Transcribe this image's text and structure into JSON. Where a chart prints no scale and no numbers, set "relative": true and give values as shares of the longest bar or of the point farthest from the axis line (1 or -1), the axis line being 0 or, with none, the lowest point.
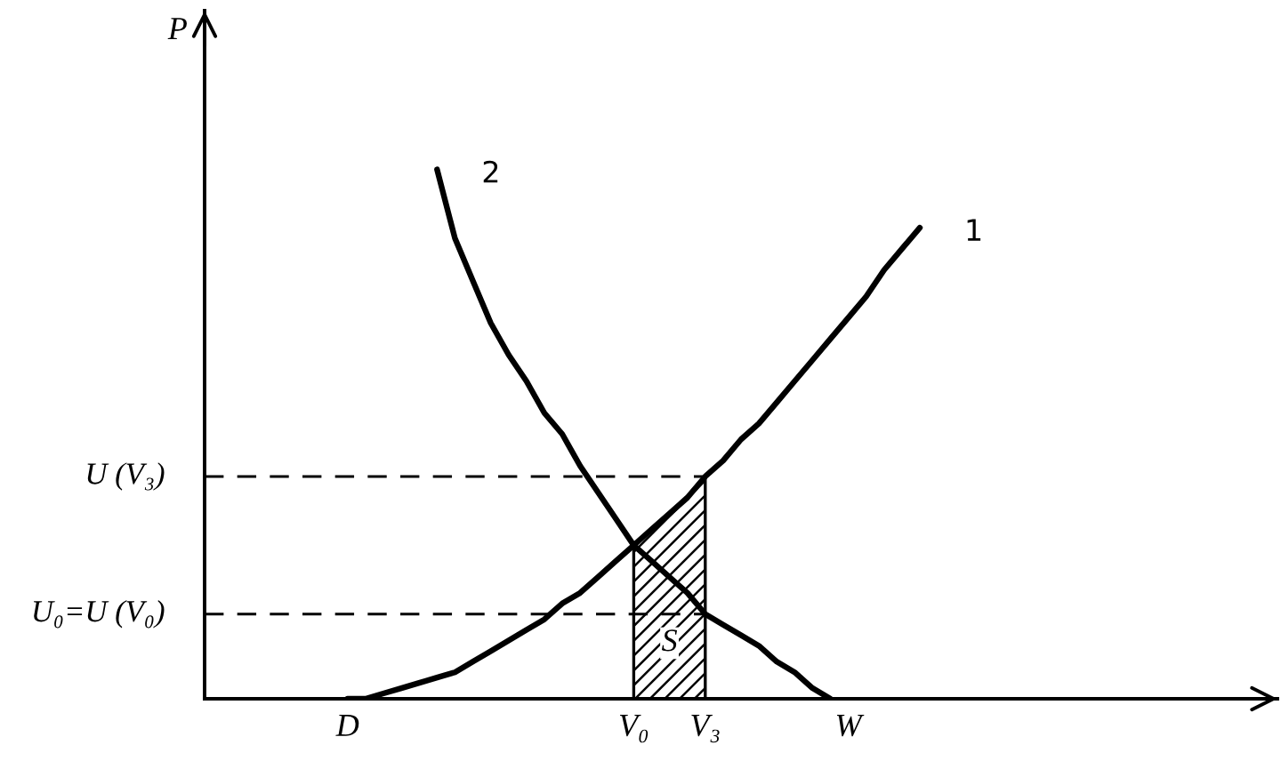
{
  "chart_data": {
    "type": "line",
    "relative": true,
    "ylabel": "P",
    "tick_labels": "x",
    "categories": [
      null,
      null,
      null,
      null,
      null,
      null,
      null,
      null,
      "D",
      null,
      null,
      null,
      null,
      null,
      null,
      null,
      null,
      null,
      null,
      null,
      null,
      null,
      null,
      null,
      "V₀",
      null,
      null,
      null,
      "V₃",
      null,
      null,
      null,
      null,
      null,
      null,
      null,
      "W",
      null,
      null,
      null,
      null,
      null,
      null,
      null,
      null,
      null,
      null,
      null,
      null,
      null,
      null,
      null,
      null,
      null,
      null,
      null,
      null,
      null,
      null,
      null
    ],
    "series": [
      {
        "name": "1",
        "color": "#000000",
        "line_style": "solid",
        "values": [
          null,
          null,
          null,
          null,
          null,
          null,
          null,
          null,
          0,
          0,
          0.01,
          0.02,
          0.03,
          0.04,
          0.05,
          0.07,
          0.09,
          0.11,
          0.13,
          0.15,
          0.18,
          0.2,
          0.23,
          0.26,
          0.29,
          0.32,
          0.35,
          0.38,
          0.42,
          0.45,
          0.49,
          0.52,
          0.56,
          0.6,
          0.64,
          0.68,
          0.72,
          0.76,
          0.81,
          0.85,
          0.89,
          null,
          null,
          null,
          null,
          null,
          null,
          null,
          null,
          null,
          null,
          null,
          null,
          null,
          null,
          null,
          null,
          null,
          null,
          null
        ]
      },
      {
        "name": "2",
        "color": "#000000",
        "line_style": "solid",
        "values": [
          null,
          null,
          null,
          null,
          null,
          null,
          null,
          null,
          null,
          null,
          null,
          null,
          null,
          1,
          0.87,
          0.79,
          0.71,
          0.65,
          0.6,
          0.54,
          0.5,
          0.44,
          0.39,
          0.34,
          0.29,
          0.26,
          0.23,
          0.2,
          0.16,
          0.14,
          0.12,
          0.1,
          0.07,
          0.05,
          0.02,
          0,
          null,
          null,
          null,
          null,
          null,
          null,
          null,
          null,
          null,
          null,
          null,
          null,
          null,
          null,
          null,
          null,
          null,
          null,
          null,
          null,
          null,
          null,
          null,
          null
        ]
      },
      {
        "name": "U (V₃)",
        "color": "#000000",
        "line_style": "dashed",
        "values": [
          0.42,
          0.42,
          0.42,
          0.42,
          0.42,
          0.42,
          0.42,
          0.42,
          0.42,
          0.42,
          0.42,
          0.42,
          0.42,
          0.42,
          0.42,
          0.42,
          0.42,
          0.42,
          0.42,
          0.42,
          0.42,
          0.42,
          0.42,
          0.42,
          0.42,
          0.42,
          0.42,
          0.42,
          0.42,
          null,
          null,
          null,
          null,
          null,
          null,
          null,
          null,
          null,
          null,
          null,
          null,
          null,
          null,
          null,
          null,
          null,
          null,
          null,
          null,
          null,
          null,
          null,
          null,
          null,
          null,
          null,
          null,
          null,
          null,
          null
        ]
      },
      {
        "name": "U₀=U (V₀)",
        "color": "#000000",
        "line_style": "dashed",
        "values": [
          0.16,
          0.16,
          0.16,
          0.16,
          0.16,
          0.16,
          0.16,
          0.16,
          0.16,
          0.16,
          0.16,
          0.16,
          0.16,
          0.16,
          0.16,
          0.16,
          0.16,
          0.16,
          0.16,
          0.16,
          0.16,
          0.16,
          0.16,
          0.16,
          0.16,
          0.16,
          0.16,
          0.16,
          0.16,
          null,
          null,
          null,
          null,
          null,
          null,
          null,
          null,
          null,
          null,
          null,
          null,
          null,
          null,
          null,
          null,
          null,
          null,
          null,
          null,
          null,
          null,
          null,
          null,
          null,
          null,
          null,
          null,
          null,
          null,
          null
        ]
      },
      {
        "name": "S",
        "type": "area",
        "color": "#000000",
        "values": [
          null,
          null,
          null,
          null,
          null,
          null,
          null,
          null,
          null,
          null,
          null,
          null,
          null,
          null,
          null,
          null,
          null,
          null,
          null,
          null,
          null,
          null,
          null,
          null,
          0.29,
          0.32,
          0.35,
          0.38,
          0.42,
          null,
          null,
          null,
          null,
          null,
          null,
          null,
          null,
          null,
          null,
          null,
          null,
          null,
          null,
          null,
          null,
          null,
          null,
          null,
          null,
          null,
          null,
          null,
          null,
          null,
          null,
          null,
          null,
          null,
          null,
          null
        ]
      }
    ]
  }
}
